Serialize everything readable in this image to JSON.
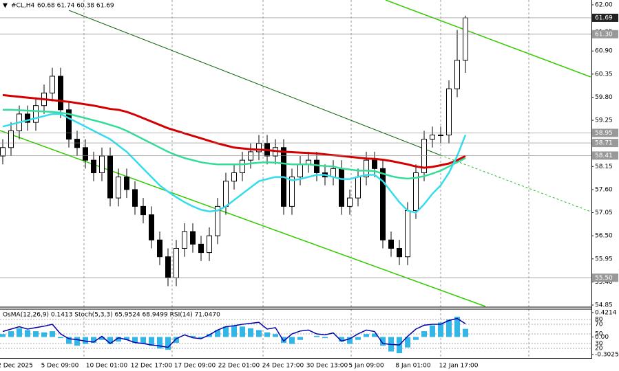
{
  "chart_data": {
    "type": "candlestick",
    "header": "#CL,H4",
    "ohlc_label": "60.68 61.74 60.38 61.69",
    "open": [
      58.4,
      58.6,
      59.0,
      59.4,
      59.2,
      59.6,
      59.9,
      60.3,
      59.5,
      58.8,
      58.6,
      58.3,
      58.0,
      58.4,
      57.4,
      57.9,
      57.6,
      57.2,
      57.0,
      56.4,
      56.0,
      55.5,
      56.2,
      56.6,
      56.3,
      56.1,
      56.5,
      57.2,
      57.8,
      58.0,
      58.3,
      58.5,
      58.7,
      58.4,
      58.6,
      57.2,
      57.9,
      58.2,
      58.3,
      58.0,
      57.9,
      58.1,
      57.2,
      57.4,
      57.9,
      58.3,
      58.1,
      56.4,
      56.2,
      56.0,
      57.1,
      58.0,
      58.8,
      58.9,
      58.9,
      60.0,
      60.68
    ],
    "high": [
      58.8,
      59.2,
      59.6,
      59.6,
      59.8,
      60.1,
      60.5,
      60.5,
      59.7,
      59.0,
      58.8,
      58.5,
      58.6,
      58.6,
      58.1,
      58.1,
      57.8,
      57.4,
      57.2,
      56.6,
      56.2,
      56.4,
      56.8,
      56.8,
      56.5,
      56.7,
      57.4,
      58.0,
      58.2,
      58.5,
      58.7,
      58.9,
      58.9,
      58.8,
      58.8,
      58.1,
      58.4,
      58.5,
      58.5,
      58.2,
      58.3,
      58.3,
      57.6,
      58.1,
      58.5,
      58.5,
      58.3,
      56.6,
      56.4,
      57.3,
      58.2,
      59.0,
      59.1,
      59.1,
      60.2,
      61.4,
      61.74
    ],
    "low": [
      58.2,
      58.4,
      58.8,
      59.0,
      59.0,
      59.4,
      59.7,
      59.3,
      58.6,
      58.4,
      58.1,
      57.8,
      57.8,
      57.2,
      57.2,
      57.4,
      57.0,
      56.8,
      56.2,
      55.8,
      55.3,
      55.3,
      56.0,
      56.1,
      55.9,
      55.9,
      56.3,
      57.0,
      57.6,
      57.8,
      58.1,
      58.3,
      58.2,
      58.2,
      57.0,
      57.0,
      57.7,
      58.0,
      57.8,
      57.7,
      57.7,
      57.0,
      57.0,
      57.2,
      57.7,
      57.9,
      56.2,
      56.0,
      55.8,
      55.8,
      56.9,
      57.8,
      58.6,
      58.7,
      58.7,
      59.8,
      60.38
    ],
    "close": [
      58.6,
      59.0,
      59.4,
      59.2,
      59.6,
      59.9,
      60.3,
      59.5,
      58.8,
      58.6,
      58.3,
      58.0,
      58.4,
      57.4,
      57.9,
      57.6,
      57.2,
      57.0,
      56.4,
      56.0,
      55.5,
      56.2,
      56.6,
      56.3,
      56.1,
      56.5,
      57.2,
      57.8,
      58.0,
      58.3,
      58.5,
      58.7,
      58.4,
      58.6,
      57.2,
      57.9,
      58.2,
      58.3,
      58.0,
      57.9,
      58.1,
      57.2,
      57.4,
      57.9,
      58.3,
      58.1,
      56.4,
      56.2,
      56.0,
      57.1,
      58.0,
      58.8,
      58.9,
      58.9,
      60.0,
      60.68,
      61.69
    ],
    "moving_averages": [
      {
        "color": "#d40000",
        "values": [
          59.85,
          59.83,
          59.81,
          59.79,
          59.77,
          59.75,
          59.73,
          59.71,
          59.69,
          59.66,
          59.63,
          59.6,
          59.56,
          59.52,
          59.5,
          59.45,
          59.38,
          59.3,
          59.22,
          59.14,
          59.06,
          59.0,
          58.94,
          58.88,
          58.82,
          58.76,
          58.7,
          58.65,
          58.6,
          58.58,
          58.56,
          58.55,
          58.54,
          58.52,
          58.5,
          58.49,
          58.48,
          58.47,
          58.46,
          58.44,
          58.42,
          58.4,
          58.38,
          58.36,
          58.34,
          58.33,
          58.31,
          58.28,
          58.24,
          58.2,
          58.15,
          58.12,
          58.14,
          58.18,
          58.22,
          58.3,
          58.4
        ]
      },
      {
        "color": "#33dd99",
        "values": [
          59.5,
          59.5,
          59.49,
          59.48,
          59.47,
          59.46,
          59.45,
          59.43,
          59.4,
          59.35,
          59.3,
          59.25,
          59.2,
          59.14,
          59.08,
          59.0,
          58.9,
          58.8,
          58.7,
          58.6,
          58.5,
          58.42,
          58.35,
          58.3,
          58.25,
          58.22,
          58.2,
          58.2,
          58.2,
          58.2,
          58.22,
          58.24,
          58.25,
          58.24,
          58.22,
          58.2,
          58.2,
          58.2,
          58.18,
          58.16,
          58.15,
          58.1,
          58.08,
          58.05,
          58.05,
          58.04,
          57.98,
          57.92,
          57.88,
          57.86,
          57.88,
          57.92,
          57.98,
          58.05,
          58.15,
          58.25,
          58.35
        ]
      },
      {
        "color": "#33dded",
        "values": [
          59.1,
          59.15,
          59.2,
          59.25,
          59.3,
          59.35,
          59.4,
          59.4,
          59.3,
          59.2,
          59.1,
          59.0,
          58.9,
          58.8,
          58.65,
          58.5,
          58.3,
          58.1,
          57.9,
          57.7,
          57.55,
          57.42,
          57.3,
          57.2,
          57.12,
          57.08,
          57.1,
          57.2,
          57.35,
          57.5,
          57.65,
          57.8,
          57.85,
          57.9,
          57.9,
          57.82,
          57.85,
          57.9,
          57.95,
          57.95,
          57.9,
          57.85,
          57.85,
          57.9,
          57.95,
          57.95,
          57.8,
          57.55,
          57.3,
          57.1,
          57.05,
          57.25,
          57.5,
          57.7,
          58.0,
          58.4,
          58.9
        ]
      }
    ],
    "ylim": [
      54.85,
      62.0
    ],
    "yticks": [
      {
        "value": 62.0,
        "label": "62.00"
      },
      {
        "value": 61.35,
        "label": "61.35"
      },
      {
        "value": 60.9,
        "label": "60.90"
      },
      {
        "value": 60.35,
        "label": "60.35"
      },
      {
        "value": 59.8,
        "label": "59.80"
      },
      {
        "value": 59.25,
        "label": "59.25"
      },
      {
        "value": 58.7,
        "label": "58.70"
      },
      {
        "value": 58.15,
        "label": "58.15"
      },
      {
        "value": 57.6,
        "label": "57.60"
      },
      {
        "value": 57.05,
        "label": "57.05"
      },
      {
        "value": 56.5,
        "label": "56.50"
      },
      {
        "value": 55.95,
        "label": "55.95"
      },
      {
        "value": 55.4,
        "label": "55.40"
      },
      {
        "value": 54.85,
        "label": "54.85"
      }
    ],
    "levels": [
      {
        "value": 61.69,
        "label": "61.69"
      },
      {
        "value": 61.3,
        "label": "61.30"
      },
      {
        "value": 58.95,
        "label": "58.95"
      },
      {
        "value": 58.71,
        "label": "58.71"
      },
      {
        "value": 58.41,
        "label": "58.41"
      },
      {
        "value": 55.5,
        "label": "55.50"
      }
    ],
    "xtick_labels": [
      "2 Dec 2025",
      "5 Dec 09:00",
      "10 Dec 01:00",
      "12 Dec 17:00",
      "17 Dec 09:00",
      "22 Dec 01:00",
      "24 Dec 17:00",
      "30 Dec 13:00",
      "5 Jan 09:00",
      "8 Jan 01:00",
      "12 Jan 17:00"
    ],
    "indicator": {
      "title": "OsMA(12,26,9) 0.1413  Stoch(5,3,3) 65.9524 68.9499  RSI(14) 71.0470",
      "osma": {
        "color": "#33b5e5",
        "ylim": [
          -0.3025,
          0.4214
        ],
        "ticks": [
          {
            "value": 0.4214,
            "label": "0.4214"
          },
          {
            "value": 0,
            "label": "0.00"
          },
          {
            "value": -0.3025,
            "label": "-0.3025"
          }
        ],
        "values": [
          0.05,
          0.1,
          0.15,
          0.12,
          0.1,
          0.08,
          0.1,
          -0.02,
          -0.12,
          -0.15,
          -0.12,
          -0.1,
          -0.05,
          -0.12,
          -0.08,
          -0.05,
          -0.1,
          -0.12,
          -0.15,
          -0.2,
          -0.22,
          -0.1,
          0.0,
          0.02,
          -0.02,
          0.05,
          0.12,
          0.18,
          0.2,
          0.18,
          0.15,
          0.12,
          0.08,
          0.05,
          -0.1,
          -0.12,
          -0.05,
          0.0,
          0.02,
          -0.02,
          0.0,
          -0.08,
          -0.12,
          -0.05,
          0.05,
          0.06,
          -0.15,
          -0.25,
          -0.28,
          -0.18,
          -0.05,
          0.1,
          0.2,
          0.25,
          0.3,
          0.35,
          0.1413
        ]
      },
      "rsi": {
        "color": "#0000aa",
        "ylim": [
          20,
          80
        ],
        "ticks": [
          80,
          70,
          50,
          30,
          20
        ],
        "values": [
          55,
          60,
          65,
          60,
          63,
          66,
          70,
          50,
          40,
          38,
          35,
          33,
          45,
          30,
          42,
          38,
          32,
          30,
          27,
          25,
          22,
          40,
          48,
          42,
          40,
          48,
          58,
          65,
          67,
          70,
          72,
          74,
          60,
          63,
          35,
          50,
          56,
          58,
          50,
          48,
          52,
          35,
          40,
          50,
          58,
          55,
          30,
          28,
          27,
          45,
          60,
          68,
          70,
          70,
          78,
          82,
          71.047
        ]
      }
    }
  }
}
